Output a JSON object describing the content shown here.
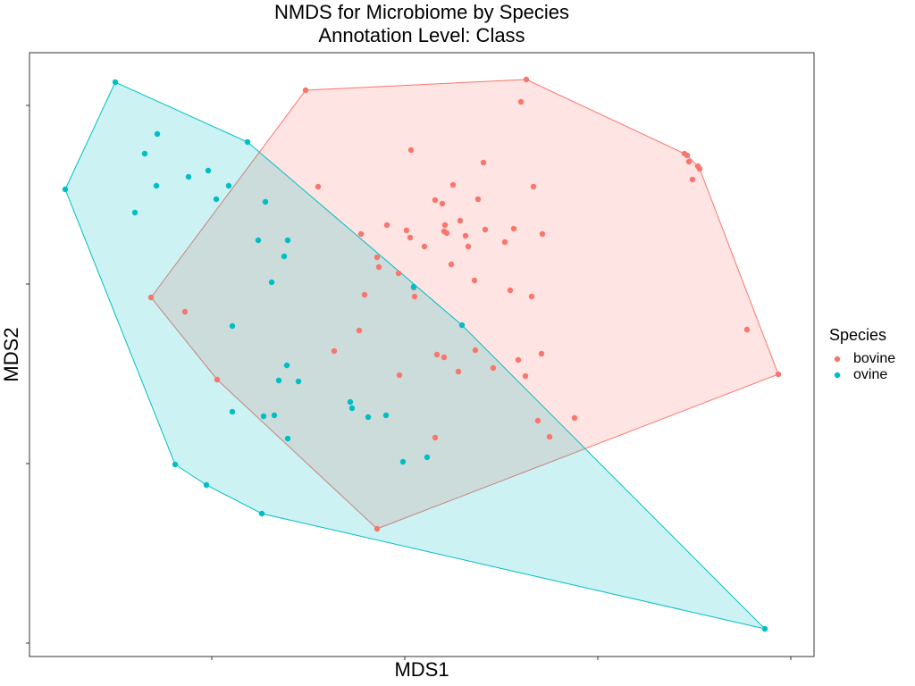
{
  "chart_data": {
    "type": "scatter",
    "title": "NMDS for Microbiome by Species",
    "subtitle": "Annotation Level: Class",
    "xlabel": "MDS1",
    "ylabel": "MDS2",
    "legend_title": "Species",
    "legend": "right",
    "hull": true,
    "xlim": [
      -0.42,
      0.458
    ],
    "ylim": [
      -0.417,
      0.259
    ],
    "xticks": [
      -0.216,
      0,
      0.216,
      0.432
    ],
    "yticks": [
      0.2,
      0,
      -0.201,
      -0.402
    ],
    "series": [
      {
        "name": "bovine",
        "color": "#F8766D",
        "x": [
          -0.111,
          0.136,
          0.13,
          0.007,
          0.088,
          0.313,
          0.316,
          0.318,
          0.328,
          0.33,
          0.322,
          -0.097,
          0.054,
          0.144,
          0.034,
          0.042,
          0.082,
          -0.02,
          0.002,
          0.045,
          0.062,
          0.09,
          0.122,
          -0.049,
          0.006,
          0.044,
          0.047,
          0.068,
          0.112,
          0.154,
          0.022,
          0.071,
          -0.031,
          0.052,
          -0.029,
          -0.007,
          0.078,
          0.01,
          -0.045,
          0.011,
          0.118,
          0.142,
          -0.284,
          -0.246,
          -0.051,
          0.383,
          -0.079,
          0.036,
          0.044,
          0.079,
          0.127,
          0.153,
          0.099,
          0.06,
          -0.006,
          0.418,
          0.135,
          -0.21,
          0.149,
          0.19,
          0.034,
          0.162,
          -0.031
        ],
        "y": [
          0.217,
          0.229,
          0.204,
          0.15,
          0.136,
          0.146,
          0.144,
          0.137,
          0.132,
          0.129,
          0.117,
          0.109,
          0.111,
          0.109,
          0.094,
          0.09,
          0.095,
          0.066,
          0.06,
          0.066,
          0.071,
          0.061,
          0.062,
          0.056,
          0.052,
          0.059,
          0.057,
          0.054,
          0.047,
          0.056,
          0.042,
          0.042,
          0.03,
          0.022,
          0.019,
          0.012,
          0.004,
          -0.004,
          -0.012,
          -0.014,
          -0.007,
          -0.014,
          -0.015,
          -0.031,
          -0.052,
          -0.051,
          -0.075,
          -0.079,
          -0.082,
          -0.074,
          -0.085,
          -0.078,
          -0.094,
          -0.098,
          -0.102,
          -0.101,
          -0.103,
          -0.107,
          -0.153,
          -0.15,
          -0.172,
          -0.171,
          -0.274
        ]
      },
      {
        "name": "ovine",
        "color": "#00BFC4",
        "x": [
          -0.324,
          -0.277,
          -0.176,
          -0.291,
          -0.22,
          -0.242,
          -0.278,
          -0.197,
          -0.38,
          -0.211,
          -0.156,
          -0.302,
          -0.164,
          -0.131,
          -0.135,
          -0.149,
          0.01,
          -0.193,
          0.064,
          -0.132,
          -0.141,
          -0.119,
          -0.061,
          -0.059,
          -0.158,
          -0.146,
          -0.193,
          -0.041,
          -0.021,
          -0.131,
          -0.257,
          -0.002,
          0.025,
          -0.222,
          -0.16,
          0.403
        ],
        "y": [
          0.226,
          0.168,
          0.159,
          0.146,
          0.127,
          0.12,
          0.11,
          0.11,
          0.106,
          0.095,
          0.092,
          0.08,
          0.049,
          0.049,
          0.031,
          0.002,
          -0.003,
          -0.047,
          -0.046,
          -0.091,
          -0.108,
          -0.109,
          -0.132,
          -0.139,
          -0.148,
          -0.147,
          -0.143,
          -0.149,
          -0.147,
          -0.173,
          -0.202,
          -0.199,
          -0.194,
          -0.225,
          -0.257,
          -0.386
        ]
      }
    ]
  }
}
